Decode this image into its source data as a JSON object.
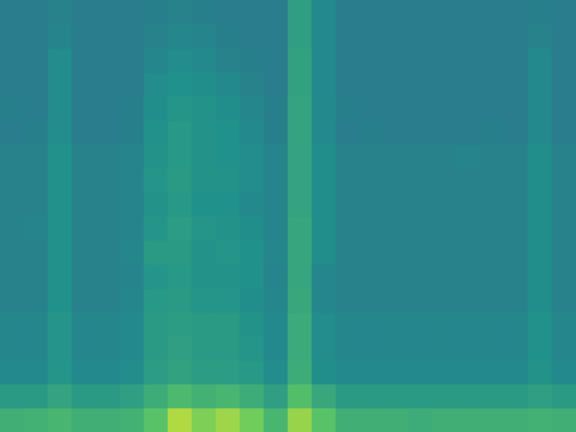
{
  "chart_data": {
    "type": "heatmap",
    "tick_labels": false,
    "zlim": [
      0,
      100
    ],
    "cells": [
      [
        42,
        42,
        44,
        42,
        42,
        42,
        43,
        44,
        43,
        42,
        42,
        42,
        56,
        47,
        42,
        42,
        42,
        42,
        42,
        42,
        42,
        42,
        43,
        42
      ],
      [
        42,
        42,
        45,
        42,
        42,
        42,
        44,
        46,
        45,
        43,
        42,
        42,
        56,
        47,
        42,
        42,
        42,
        42,
        42,
        42,
        42,
        42,
        44,
        42
      ],
      [
        42,
        42,
        48,
        42,
        42,
        42,
        46,
        48,
        47,
        44,
        43,
        42,
        57,
        47,
        42,
        42,
        42,
        42,
        42,
        42,
        42,
        42,
        47,
        42
      ],
      [
        42,
        42,
        48,
        42,
        42,
        42,
        48,
        50,
        49,
        47,
        44,
        42,
        57,
        47,
        42,
        42,
        42,
        42,
        42,
        42,
        42,
        42,
        47,
        42
      ],
      [
        43,
        42,
        48,
        42,
        42,
        43,
        49,
        52,
        51,
        49,
        46,
        43,
        58,
        47,
        43,
        42,
        42,
        42,
        42,
        42,
        42,
        42,
        47,
        42
      ],
      [
        42,
        43,
        48,
        42,
        42,
        43,
        50,
        53,
        51,
        50,
        47,
        43,
        58,
        47,
        42,
        43,
        42,
        42,
        42,
        42,
        43,
        42,
        47,
        42
      ],
      [
        44,
        44,
        50,
        44,
        44,
        45,
        51,
        53,
        51,
        50,
        48,
        45,
        58,
        49,
        44,
        44,
        44,
        44,
        44,
        45,
        44,
        44,
        49,
        44
      ],
      [
        44,
        44,
        50,
        44,
        44,
        45,
        52,
        54,
        51,
        51,
        48,
        45,
        58,
        49,
        44,
        44,
        44,
        44,
        44,
        44,
        44,
        44,
        49,
        44
      ],
      [
        44,
        44,
        50,
        44,
        44,
        45,
        51,
        53,
        50,
        50,
        47,
        45,
        58,
        49,
        44,
        44,
        44,
        44,
        44,
        44,
        44,
        44,
        49,
        44
      ],
      [
        44,
        45,
        50,
        44,
        44,
        45,
        52,
        55,
        52,
        51,
        49,
        45,
        59,
        49,
        44,
        44,
        44,
        44,
        44,
        44,
        44,
        44,
        49,
        44
      ],
      [
        44,
        44,
        50,
        44,
        44,
        46,
        54,
        54,
        51,
        52,
        50,
        46,
        59,
        49,
        44,
        44,
        44,
        44,
        44,
        44,
        44,
        44,
        49,
        44
      ],
      [
        44,
        44,
        50,
        44,
        44,
        45,
        52,
        53,
        51,
        51,
        50,
        45,
        59,
        46,
        44,
        44,
        44,
        44,
        44,
        44,
        44,
        44,
        49,
        44
      ],
      [
        44,
        44,
        50,
        44,
        44,
        46,
        53,
        54,
        52,
        52,
        49,
        46,
        60,
        46,
        44,
        44,
        44,
        44,
        44,
        44,
        44,
        44,
        49,
        44
      ],
      [
        46,
        46,
        52,
        46,
        46,
        47,
        54,
        55,
        54,
        54,
        51,
        47,
        61,
        48,
        46,
        46,
        46,
        46,
        46,
        46,
        46,
        46,
        50,
        46
      ],
      [
        46,
        46,
        52,
        46,
        46,
        47,
        54,
        56,
        54,
        54,
        52,
        47,
        61,
        48,
        46,
        46,
        46,
        46,
        46,
        46,
        46,
        46,
        50,
        46
      ],
      [
        47,
        47,
        52,
        47,
        47,
        48,
        55,
        57,
        55,
        55,
        53,
        48,
        62,
        49,
        47,
        47,
        47,
        47,
        47,
        47,
        47,
        47,
        51,
        47
      ],
      [
        54,
        54,
        58,
        54,
        54,
        56,
        62,
        68,
        64,
        66,
        62,
        56,
        70,
        60,
        54,
        54,
        54,
        54,
        54,
        54,
        54,
        54,
        56,
        54
      ],
      [
        63,
        64,
        66,
        63,
        63,
        64,
        72,
        88,
        80,
        85,
        78,
        66,
        84,
        72,
        63,
        63,
        63,
        62,
        63,
        63,
        63,
        63,
        64,
        63
      ]
    ]
  }
}
